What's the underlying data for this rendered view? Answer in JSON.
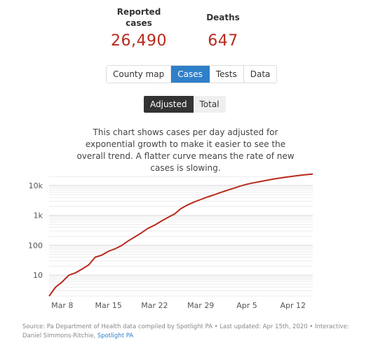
{
  "stats": {
    "cases": {
      "label": "Reported cases",
      "value": "26,490"
    },
    "deaths": {
      "label": "Deaths",
      "value": "647"
    }
  },
  "tabs": [
    {
      "label": "County map",
      "active": false
    },
    {
      "label": "Cases",
      "active": true
    },
    {
      "label": "Tests",
      "active": false
    },
    {
      "label": "Data",
      "active": false
    }
  ],
  "toggle": [
    {
      "label": "Adjusted",
      "active": true
    },
    {
      "label": "Total",
      "active": false
    }
  ],
  "description": "This chart shows cases per day adjusted for exponential growth to make it easier to see the overall trend. A flatter curve means the rate of new cases is slowing.",
  "chart_data": {
    "type": "line",
    "title": "",
    "xlabel": "",
    "ylabel": "",
    "y_scale": "log",
    "ylim": [
      2,
      25000
    ],
    "xlim": [
      "2020-03-06",
      "2020-04-15"
    ],
    "y_ticks": [
      {
        "value": 10,
        "label": "10"
      },
      {
        "value": 100,
        "label": "100"
      },
      {
        "value": 1000,
        "label": "1k"
      },
      {
        "value": 10000,
        "label": "10k"
      }
    ],
    "x_ticks": [
      {
        "value": "2020-03-08",
        "label": "Mar 8"
      },
      {
        "value": "2020-03-15",
        "label": "Mar 15"
      },
      {
        "value": "2020-03-22",
        "label": "Mar 22"
      },
      {
        "value": "2020-03-29",
        "label": "Mar 29"
      },
      {
        "value": "2020-04-05",
        "label": "Apr 5"
      },
      {
        "value": "2020-04-12",
        "label": "Apr 12"
      }
    ],
    "grid": true,
    "line_color": "#b82a1c",
    "series": [
      {
        "x": [
          "2020-03-06",
          "2020-03-07",
          "2020-03-08",
          "2020-03-09",
          "2020-03-10",
          "2020-03-11",
          "2020-03-12",
          "2020-03-13",
          "2020-03-14",
          "2020-03-15",
          "2020-03-16",
          "2020-03-17",
          "2020-03-18",
          "2020-03-19",
          "2020-03-20",
          "2020-03-21",
          "2020-03-22",
          "2020-03-23",
          "2020-03-24",
          "2020-03-25",
          "2020-03-26",
          "2020-03-27",
          "2020-03-28",
          "2020-03-29",
          "2020-03-30",
          "2020-03-31",
          "2020-04-01",
          "2020-04-02",
          "2020-04-03",
          "2020-04-04",
          "2020-04-05",
          "2020-04-06",
          "2020-04-07",
          "2020-04-08",
          "2020-04-09",
          "2020-04-10",
          "2020-04-11",
          "2020-04-12",
          "2020-04-13",
          "2020-04-14",
          "2020-04-15"
        ],
        "values": [
          2,
          4,
          6,
          10,
          12,
          16,
          22,
          40,
          47,
          63,
          76,
          98,
          140,
          190,
          260,
          370,
          470,
          640,
          850,
          1100,
          1690,
          2230,
          2800,
          3400,
          4100,
          4850,
          5800,
          6900,
          8100,
          9600,
          11000,
          12300,
          13500,
          14900,
          16300,
          17700,
          19100,
          20500,
          21900,
          23000,
          24200
        ]
      }
    ]
  },
  "source": {
    "text": "Source: Pa Department of Health data compiled by Spotlight PA • Last updated: Apr 15th, 2020 • Interactive: Daniel Simmons-Ritchie, ",
    "link": "Spotlight PA"
  }
}
